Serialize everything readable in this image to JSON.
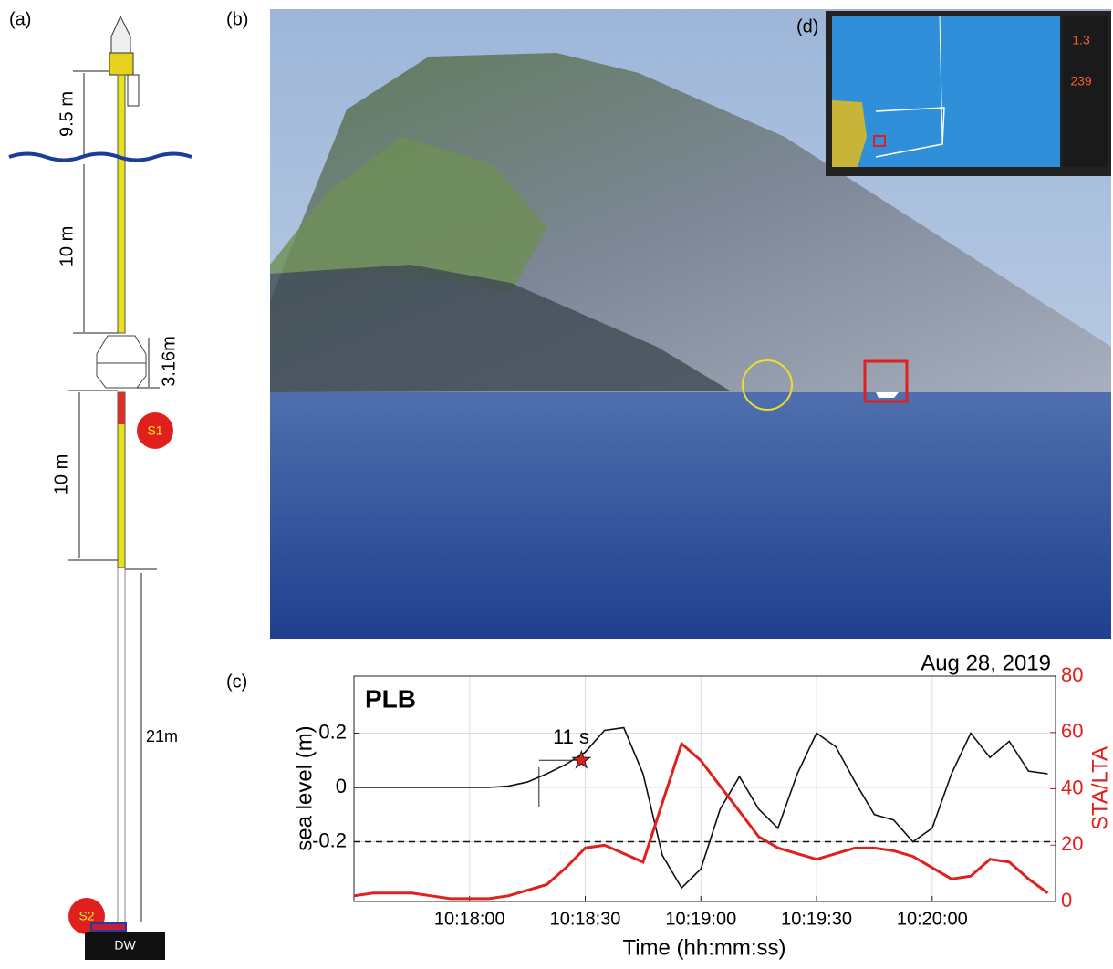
{
  "panel_labels": {
    "a": "(a)",
    "b": "(b)",
    "c": "(c)",
    "d": "(d)"
  },
  "diagram": {
    "dims": [
      "9.5 m",
      "10 m",
      "3.16m",
      "10 m",
      "21m"
    ],
    "sensors": [
      "S1",
      "S2"
    ],
    "base": "DW"
  },
  "inset": {
    "readouts": [
      "1.3",
      "239"
    ]
  },
  "chart_data": {
    "type": "line",
    "title": "PLB",
    "subtitle": "Aug 28, 2019",
    "x_label": "Time (hh:mm:ss)",
    "y_label": "sea level (m)",
    "y2_label": "STA/LTA",
    "x": [
      37050,
      37055,
      37060,
      37065,
      37070,
      37075,
      37080,
      37085,
      37090,
      37095,
      37100,
      37105,
      37110,
      37115,
      37120,
      37125,
      37130,
      37135,
      37140,
      37145,
      37150,
      37155,
      37160,
      37165,
      37170,
      37175,
      37180,
      37185,
      37190,
      37195,
      37200,
      37205,
      37210,
      37215,
      37220,
      37225,
      37230
    ],
    "series": [
      {
        "name": "sea level",
        "color": "#111111",
        "values": [
          0,
          0,
          0,
          0,
          0,
          0,
          0,
          0,
          0.005,
          0.02,
          0.05,
          0.085,
          0.13,
          0.21,
          0.22,
          0.05,
          -0.25,
          -0.37,
          -0.3,
          -0.08,
          0.04,
          -0.08,
          -0.15,
          0.05,
          0.2,
          0.15,
          0.02,
          -0.1,
          -0.12,
          -0.2,
          -0.15,
          0.05,
          0.2,
          0.11,
          0.17,
          0.06,
          0.05
        ]
      },
      {
        "name": "STA/LTA",
        "color": "#e0201c",
        "axis": "y2",
        "values": [
          2,
          3,
          3,
          3,
          2,
          1,
          1,
          1,
          2,
          4,
          6,
          12,
          19,
          20,
          17,
          14,
          35,
          56,
          50,
          41,
          32,
          23,
          19,
          17,
          15,
          17,
          19,
          19,
          18,
          16,
          12,
          8,
          9,
          15,
          14,
          8,
          3
        ]
      }
    ],
    "xlim": [
      37050,
      37232
    ],
    "xticks": [
      {
        "value": 37080,
        "label": "10:18:00"
      },
      {
        "value": 37110,
        "label": "10:18:30"
      },
      {
        "value": 37140,
        "label": "10:19:00"
      },
      {
        "value": 37170,
        "label": "10:19:30"
      },
      {
        "value": 37200,
        "label": "10:20:00"
      }
    ],
    "ylim": [
      -0.42,
      0.41
    ],
    "yticks": [
      -0.2,
      0,
      0.2
    ],
    "y2lim": [
      0,
      80
    ],
    "y2ticks": [
      0,
      20,
      40,
      60,
      80
    ],
    "grid": true,
    "hline": -0.2,
    "onset": 37098,
    "star": {
      "x": 37109,
      "y": 0.1
    },
    "interval_label": "11 s"
  }
}
